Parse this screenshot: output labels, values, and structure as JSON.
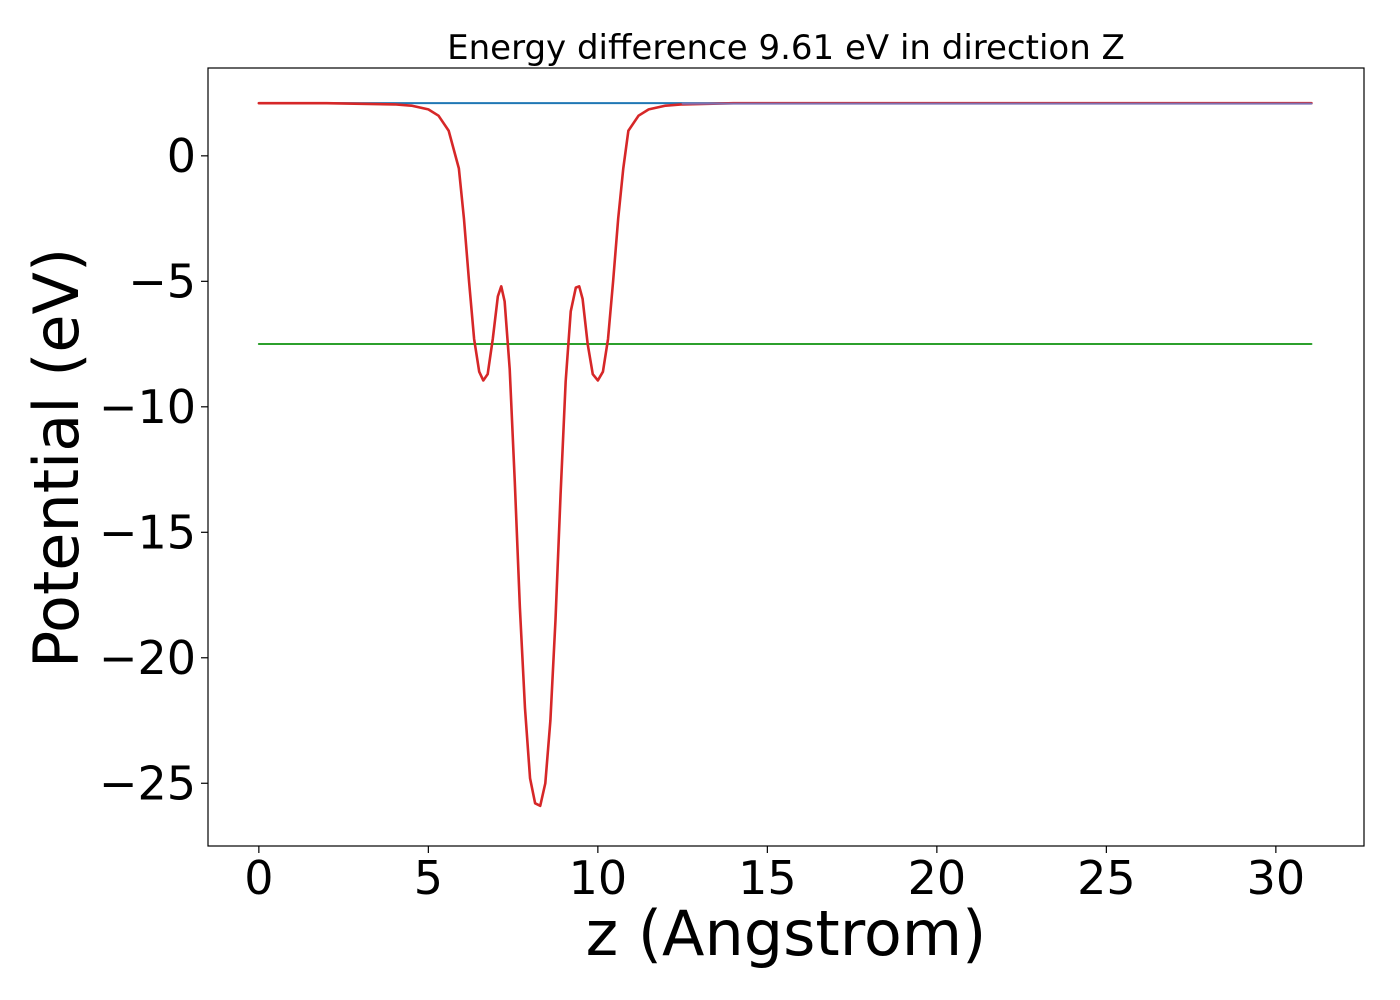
{
  "chart_data": {
    "type": "line",
    "title": "Energy difference 9.61 eV in direction Z",
    "xlabel": "z (Angstrom)",
    "ylabel": "Potential (eV)",
    "xlim": [
      -1.5,
      32.6
    ],
    "ylim": [
      -27.5,
      3.5
    ],
    "xticks": [
      0,
      5,
      10,
      15,
      20,
      25,
      30
    ],
    "yticks": [
      0,
      -5,
      -10,
      -15,
      -20,
      -25
    ],
    "xtick_labels": [
      "0",
      "5",
      "10",
      "15",
      "20",
      "25",
      "30"
    ],
    "ytick_labels": [
      "0",
      "−5",
      "−10",
      "−15",
      "−20",
      "−25"
    ],
    "grid": false,
    "legend": "none",
    "series": [
      {
        "color": "#1f77b4",
        "x": [
          0,
          31.05
        ],
        "values": [
          2.1,
          2.1
        ]
      },
      {
        "color": "#2ca02c",
        "x": [
          0,
          31.05
        ],
        "values": [
          -7.5,
          -7.5
        ]
      },
      {
        "color": "#d62728",
        "x": [
          0,
          2,
          4,
          4.5,
          5,
          5.3,
          5.6,
          5.9,
          6.05,
          6.2,
          6.35,
          6.5,
          6.62,
          6.75,
          6.9,
          7.05,
          7.15,
          7.25,
          7.4,
          7.55,
          7.7,
          7.85,
          8.0,
          8.15,
          8.3,
          8.45,
          8.6,
          8.75,
          8.9,
          9.05,
          9.2,
          9.35,
          9.45,
          9.55,
          9.7,
          9.85,
          10.0,
          10.15,
          10.3,
          10.45,
          10.6,
          10.75,
          10.9,
          11.2,
          11.5,
          12.0,
          12.5,
          14,
          20,
          31.05
        ],
        "values": [
          2.1,
          2.1,
          2.05,
          2.0,
          1.85,
          1.6,
          1.0,
          -0.5,
          -2.5,
          -5.0,
          -7.3,
          -8.6,
          -8.95,
          -8.7,
          -7.3,
          -5.6,
          -5.2,
          -5.8,
          -8.5,
          -13.0,
          -18.0,
          -22.0,
          -24.8,
          -25.8,
          -25.9,
          -25.0,
          -22.5,
          -18.5,
          -13.5,
          -9.0,
          -6.2,
          -5.25,
          -5.2,
          -5.7,
          -7.5,
          -8.7,
          -8.95,
          -8.6,
          -7.3,
          -5.0,
          -2.5,
          -0.5,
          1.0,
          1.6,
          1.85,
          2.0,
          2.05,
          2.1,
          2.1,
          2.1
        ]
      },
      {
        "color": "#7f6fb0",
        "x": [
          12.5,
          31.05
        ],
        "values": [
          2.08,
          2.08
        ]
      }
    ]
  }
}
